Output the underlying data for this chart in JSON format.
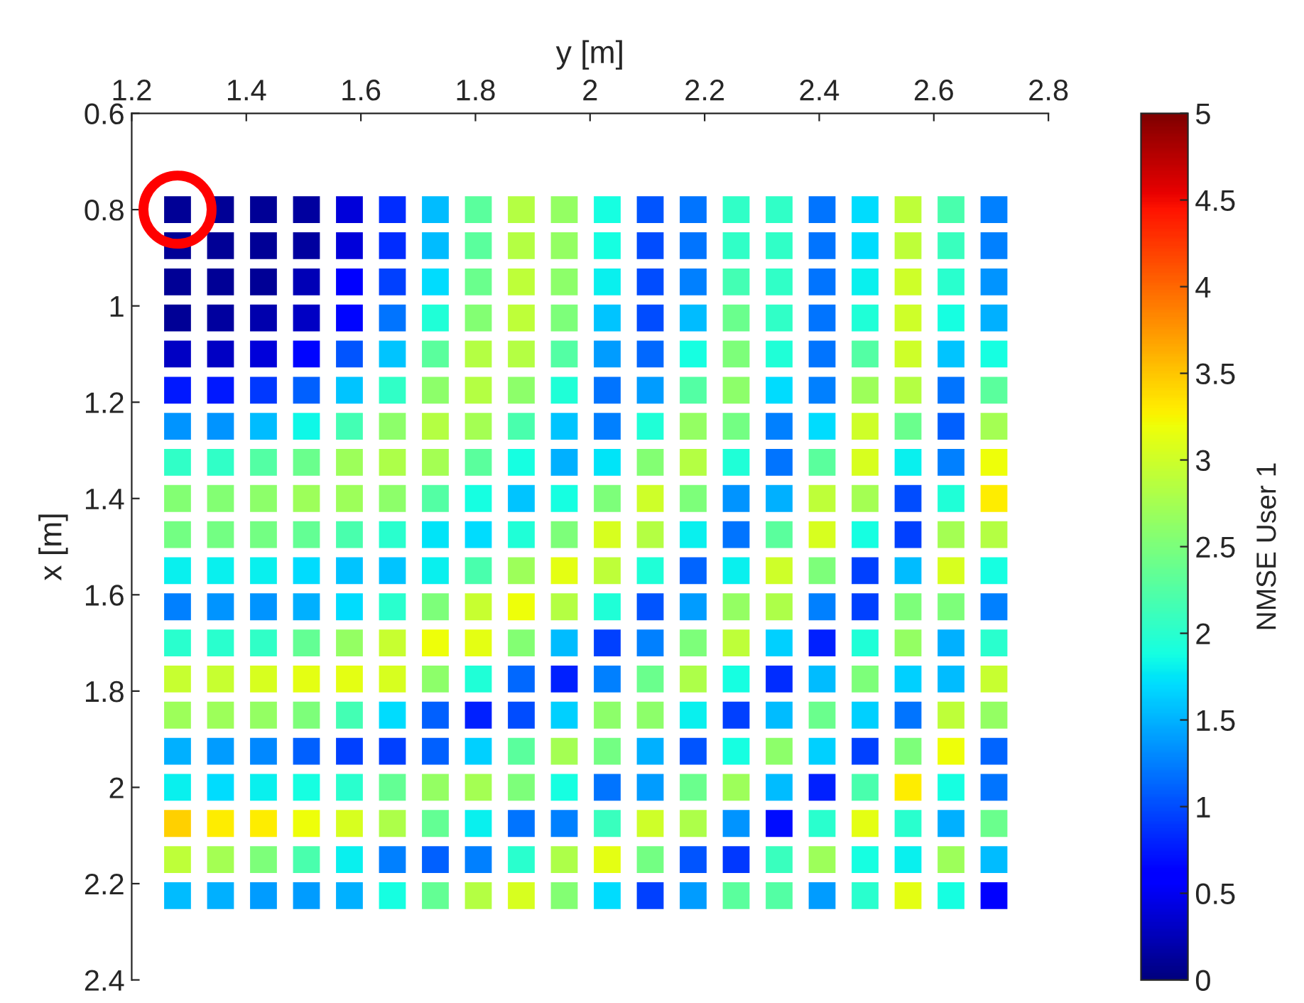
{
  "chart_data": {
    "type": "scatter",
    "xlabel": "y [m]",
    "ylabel": "x [m]",
    "clabel": "NMSE User 1",
    "marker": "square",
    "x": [
      1.28,
      1.355,
      1.43,
      1.505,
      1.58,
      1.655,
      1.73,
      1.805,
      1.88,
      1.955,
      2.03,
      2.105,
      2.18,
      2.255,
      2.33,
      2.405,
      2.48,
      2.555,
      2.63,
      2.705,
      1.28,
      1.355,
      1.43,
      1.505,
      1.58,
      1.655,
      1.73,
      1.805,
      1.88,
      1.955,
      2.03,
      2.105,
      2.18,
      2.255,
      2.33,
      2.405,
      2.48,
      2.555,
      2.63,
      2.705,
      1.28,
      1.355,
      1.43,
      1.505,
      1.58,
      1.655,
      1.73,
      1.805,
      1.88,
      1.955,
      2.03,
      2.105,
      2.18,
      2.255,
      2.33,
      2.405,
      2.48,
      2.555,
      2.63,
      2.705,
      1.28,
      1.355,
      1.43,
      1.505,
      1.58,
      1.655,
      1.73,
      1.805,
      1.88,
      1.955,
      2.03,
      2.105,
      2.18,
      2.255,
      2.33,
      2.405,
      2.48,
      2.555,
      2.63,
      2.705,
      1.28,
      1.355,
      1.43,
      1.505,
      1.58,
      1.655,
      1.73,
      1.805,
      1.88,
      1.955,
      2.03,
      2.105,
      2.18,
      2.255,
      2.33,
      2.405,
      2.48,
      2.555,
      2.63,
      2.705,
      1.28,
      1.355,
      1.43,
      1.505,
      1.58,
      1.655,
      1.73,
      1.805,
      1.88,
      1.955,
      2.03,
      2.105,
      2.18,
      2.255,
      2.33,
      2.405,
      2.48,
      2.555,
      2.63,
      2.705,
      1.28,
      1.355,
      1.43,
      1.505,
      1.58,
      1.655,
      1.73,
      1.805,
      1.88,
      1.955,
      2.03,
      2.105,
      2.18,
      2.255,
      2.33,
      2.405,
      2.48,
      2.555,
      2.63,
      2.705,
      1.28,
      1.355,
      1.43,
      1.505,
      1.58,
      1.655,
      1.73,
      1.805,
      1.88,
      1.955,
      2.03,
      2.105,
      2.18,
      2.255,
      2.33,
      2.405,
      2.48,
      2.555,
      2.63,
      2.705,
      1.28,
      1.355,
      1.43,
      1.505,
      1.58,
      1.655,
      1.73,
      1.805,
      1.88,
      1.955,
      2.03,
      2.105,
      2.18,
      2.255,
      2.33,
      2.405,
      2.48,
      2.555,
      2.63,
      2.705,
      1.28,
      1.355,
      1.43,
      1.505,
      1.58,
      1.655,
      1.73,
      1.805,
      1.88,
      1.955,
      2.03,
      2.105,
      2.18,
      2.255,
      2.33,
      2.405,
      2.48,
      2.555,
      2.63,
      2.705,
      1.28,
      1.355,
      1.43,
      1.505,
      1.58,
      1.655,
      1.73,
      1.805,
      1.88,
      1.955,
      2.03,
      2.105,
      2.18,
      2.255,
      2.33,
      2.405,
      2.48,
      2.555,
      2.63,
      2.705,
      1.28,
      1.355,
      1.43,
      1.505,
      1.58,
      1.655,
      1.73,
      1.805,
      1.88,
      1.955,
      2.03,
      2.105,
      2.18,
      2.255,
      2.33,
      2.405,
      2.48,
      2.555,
      2.63,
      2.705,
      1.28,
      1.355,
      1.43,
      1.505,
      1.58,
      1.655,
      1.73,
      1.805,
      1.88,
      1.955,
      2.03,
      2.105,
      2.18,
      2.255,
      2.33,
      2.405,
      2.48,
      2.555,
      2.63,
      2.705,
      1.28,
      1.355,
      1.43,
      1.505,
      1.58,
      1.655,
      1.73,
      1.805,
      1.88,
      1.955,
      2.03,
      2.105,
      2.18,
      2.255,
      2.33,
      2.405,
      2.48,
      2.555,
      2.63,
      2.705,
      1.28,
      1.355,
      1.43,
      1.505,
      1.58,
      1.655,
      1.73,
      1.805,
      1.88,
      1.955,
      2.03,
      2.105,
      2.18,
      2.255,
      2.33,
      2.405,
      2.48,
      2.555,
      2.63,
      2.705,
      1.28,
      1.355,
      1.43,
      1.505,
      1.58,
      1.655,
      1.73,
      1.805,
      1.88,
      1.955,
      2.03,
      2.105,
      2.18,
      2.255,
      2.33,
      2.405,
      2.48,
      2.555,
      2.63,
      2.705,
      1.28,
      1.355,
      1.43,
      1.505,
      1.58,
      1.655,
      1.73,
      1.805,
      1.88,
      1.955,
      2.03,
      2.105,
      2.18,
      2.255,
      2.33,
      2.405,
      2.48,
      2.555,
      2.63,
      2.705,
      1.28,
      1.355,
      1.43,
      1.505,
      1.58,
      1.655,
      1.73,
      1.805,
      1.88,
      1.955,
      2.03,
      2.105,
      2.18,
      2.255,
      2.33,
      2.405,
      2.48,
      2.555,
      2.63,
      2.705,
      1.28,
      1.355,
      1.43,
      1.505,
      1.58,
      1.655,
      1.73,
      1.805,
      1.88,
      1.955,
      2.03,
      2.105,
      2.18,
      2.255,
      2.33,
      2.405,
      2.48,
      2.555,
      2.63,
      2.705,
      1.28,
      1.355,
      1.43,
      1.505,
      1.58,
      1.655,
      1.73,
      1.805,
      1.88,
      1.955,
      2.03,
      2.105,
      2.18,
      2.255,
      2.33,
      2.405,
      2.48,
      2.555,
      2.63,
      2.705
    ],
    "values": [
      0.8,
      0.8,
      0.8,
      0.8,
      0.8,
      0.8,
      0.8,
      0.8,
      0.8,
      0.8,
      0.8,
      0.8,
      0.8,
      0.8,
      0.8,
      0.8,
      0.8,
      0.8,
      0.8,
      0.8,
      0.875,
      0.875,
      0.875,
      0.875,
      0.875,
      0.875,
      0.875,
      0.875,
      0.875,
      0.875,
      0.875,
      0.875,
      0.875,
      0.875,
      0.875,
      0.875,
      0.875,
      0.875,
      0.875,
      0.875,
      0.95,
      0.95,
      0.95,
      0.95,
      0.95,
      0.95,
      0.95,
      0.95,
      0.95,
      0.95,
      0.95,
      0.95,
      0.95,
      0.95,
      0.95,
      0.95,
      0.95,
      0.95,
      0.95,
      0.95,
      1.025,
      1.025,
      1.025,
      1.025,
      1.025,
      1.025,
      1.025,
      1.025,
      1.025,
      1.025,
      1.025,
      1.025,
      1.025,
      1.025,
      1.025,
      1.025,
      1.025,
      1.025,
      1.025,
      1.025,
      1.1,
      1.1,
      1.1,
      1.1,
      1.1,
      1.1,
      1.1,
      1.1,
      1.1,
      1.1,
      1.1,
      1.1,
      1.1,
      1.1,
      1.1,
      1.1,
      1.1,
      1.1,
      1.1,
      1.1,
      1.175,
      1.175,
      1.175,
      1.175,
      1.175,
      1.175,
      1.175,
      1.175,
      1.175,
      1.175,
      1.175,
      1.175,
      1.175,
      1.175,
      1.175,
      1.175,
      1.175,
      1.175,
      1.175,
      1.175,
      1.25,
      1.25,
      1.25,
      1.25,
      1.25,
      1.25,
      1.25,
      1.25,
      1.25,
      1.25,
      1.25,
      1.25,
      1.25,
      1.25,
      1.25,
      1.25,
      1.25,
      1.25,
      1.25,
      1.25,
      1.325,
      1.325,
      1.325,
      1.325,
      1.325,
      1.325,
      1.325,
      1.325,
      1.325,
      1.325,
      1.325,
      1.325,
      1.325,
      1.325,
      1.325,
      1.325,
      1.325,
      1.325,
      1.325,
      1.325,
      1.4,
      1.4,
      1.4,
      1.4,
      1.4,
      1.4,
      1.4,
      1.4,
      1.4,
      1.4,
      1.4,
      1.4,
      1.4,
      1.4,
      1.4,
      1.4,
      1.4,
      1.4,
      1.4,
      1.4,
      1.475,
      1.475,
      1.475,
      1.475,
      1.475,
      1.475,
      1.475,
      1.475,
      1.475,
      1.475,
      1.475,
      1.475,
      1.475,
      1.475,
      1.475,
      1.475,
      1.475,
      1.475,
      1.475,
      1.475,
      1.55,
      1.55,
      1.55,
      1.55,
      1.55,
      1.55,
      1.55,
      1.55,
      1.55,
      1.55,
      1.55,
      1.55,
      1.55,
      1.55,
      1.55,
      1.55,
      1.55,
      1.55,
      1.55,
      1.55,
      1.625,
      1.625,
      1.625,
      1.625,
      1.625,
      1.625,
      1.625,
      1.625,
      1.625,
      1.625,
      1.625,
      1.625,
      1.625,
      1.625,
      1.625,
      1.625,
      1.625,
      1.625,
      1.625,
      1.625,
      1.7,
      1.7,
      1.7,
      1.7,
      1.7,
      1.7,
      1.7,
      1.7,
      1.7,
      1.7,
      1.7,
      1.7,
      1.7,
      1.7,
      1.7,
      1.7,
      1.7,
      1.7,
      1.7,
      1.7,
      1.775,
      1.775,
      1.775,
      1.775,
      1.775,
      1.775,
      1.775,
      1.775,
      1.775,
      1.775,
      1.775,
      1.775,
      1.775,
      1.775,
      1.775,
      1.775,
      1.775,
      1.775,
      1.775,
      1.775,
      1.85,
      1.85,
      1.85,
      1.85,
      1.85,
      1.85,
      1.85,
      1.85,
      1.85,
      1.85,
      1.85,
      1.85,
      1.85,
      1.85,
      1.85,
      1.85,
      1.85,
      1.85,
      1.85,
      1.85,
      1.925,
      1.925,
      1.925,
      1.925,
      1.925,
      1.925,
      1.925,
      1.925,
      1.925,
      1.925,
      1.925,
      1.925,
      1.925,
      1.925,
      1.925,
      1.925,
      1.925,
      1.925,
      1.925,
      1.925,
      2.0,
      2.0,
      2.0,
      2.0,
      2.0,
      2.0,
      2.0,
      2.0,
      2.0,
      2.0,
      2.0,
      2.0,
      2.0,
      2.0,
      2.0,
      2.0,
      2.0,
      2.0,
      2.0,
      2.0,
      2.075,
      2.075,
      2.075,
      2.075,
      2.075,
      2.075,
      2.075,
      2.075,
      2.075,
      2.075,
      2.075,
      2.075,
      2.075,
      2.075,
      2.075,
      2.075,
      2.075,
      2.075,
      2.075,
      2.075,
      2.15,
      2.15,
      2.15,
      2.15,
      2.15,
      2.15,
      2.15,
      2.15,
      2.15,
      2.15,
      2.15,
      2.15,
      2.15,
      2.15,
      2.15,
      2.15,
      2.15,
      2.15,
      2.15,
      2.15,
      2.225,
      2.225,
      2.225,
      2.225,
      2.225,
      2.225,
      2.225,
      2.225,
      2.225,
      2.225,
      2.225,
      2.225,
      2.225,
      2.225,
      2.225,
      2.225,
      2.225,
      2.225,
      2.225,
      2.225
    ],
    "cvalues": [
      0.1,
      0.1,
      0.1,
      0.15,
      0.4,
      0.85,
      1.55,
      2.3,
      2.85,
      2.65,
      1.875,
      1.05,
      1.2,
      2.05,
      2.05,
      1.2,
      1.7,
      2.9,
      2.2,
      1.25,
      0.1,
      0.1,
      0.1,
      0.15,
      0.4,
      0.85,
      1.55,
      2.3,
      2.85,
      2.65,
      1.875,
      1.0,
      1.2,
      2.05,
      2.05,
      1.2,
      1.7,
      2.9,
      2.1,
      1.25,
      0.1,
      0.1,
      0.1,
      0.25,
      0.6,
      0.95,
      1.7,
      2.4,
      2.9,
      2.6,
      1.8,
      1.0,
      1.25,
      2.15,
      2.05,
      1.2,
      1.8,
      3.0,
      2.0,
      1.35,
      0.1,
      0.15,
      0.2,
      0.3,
      0.65,
      1.2,
      1.95,
      2.55,
      2.9,
      2.5,
      1.6,
      1.0,
      1.55,
      2.4,
      2.05,
      1.2,
      1.95,
      3.0,
      1.875,
      1.5,
      0.3,
      0.3,
      0.4,
      0.65,
      1.05,
      1.6,
      2.3,
      2.85,
      2.85,
      2.25,
      1.4,
      1.15,
      1.875,
      2.5,
      1.95,
      1.2,
      2.25,
      3.0,
      1.6,
      1.875,
      0.75,
      0.75,
      0.9,
      1.1,
      1.6,
      2.05,
      2.6,
      2.85,
      2.6,
      1.95,
      1.2,
      1.4,
      2.25,
      2.6,
      1.7,
      1.25,
      2.7,
      2.85,
      1.2,
      2.3,
      1.35,
      1.35,
      1.55,
      1.85,
      2.15,
      2.6,
      2.85,
      2.75,
      2.2,
      1.6,
      1.25,
      1.95,
      2.65,
      2.45,
      1.25,
      1.7,
      3.0,
      2.4,
      1.1,
      2.75,
      2.05,
      2.05,
      2.25,
      2.4,
      2.7,
      2.8,
      2.75,
      2.3,
      1.875,
      1.5,
      1.75,
      2.55,
      2.85,
      1.95,
      1.2,
      2.3,
      3.05,
      1.8,
      1.25,
      3.2,
      2.55,
      2.55,
      2.6,
      2.7,
      2.7,
      2.6,
      2.25,
      1.875,
      1.6,
      1.875,
      2.5,
      3.0,
      2.5,
      1.35,
      1.5,
      2.9,
      2.75,
      1.0,
      1.95,
      3.3,
      2.45,
      2.45,
      2.45,
      2.35,
      2.2,
      2.0,
      1.75,
      1.7,
      1.95,
      2.5,
      3.05,
      2.85,
      1.8,
      1.2,
      2.3,
      3.05,
      1.875,
      0.95,
      2.75,
      2.85,
      1.8,
      1.8,
      1.8,
      1.7,
      1.6,
      1.6,
      1.8,
      2.2,
      2.7,
      3.125,
      2.9,
      1.95,
      1.125,
      1.8,
      3.0,
      2.5,
      0.95,
      1.55,
      3.05,
      1.875,
      1.25,
      1.35,
      1.35,
      1.5,
      1.7,
      2.0,
      2.5,
      2.95,
      3.2,
      2.85,
      1.95,
      1.05,
      1.4,
      2.65,
      2.8,
      1.25,
      0.95,
      2.5,
      2.5,
      1.25,
      2.0,
      2.0,
      2.05,
      2.35,
      2.65,
      2.95,
      3.2,
      3.125,
      2.55,
      1.55,
      0.95,
      1.25,
      2.5,
      2.9,
      1.65,
      0.8,
      1.95,
      2.65,
      1.5,
      2.0,
      2.95,
      2.95,
      3.05,
      3.125,
      3.125,
      3.05,
      2.6,
      1.95,
      1.15,
      0.8,
      1.25,
      2.4,
      2.8,
      1.875,
      0.85,
      1.55,
      2.5,
      1.65,
      1.55,
      2.95,
      2.7,
      2.7,
      2.65,
      2.5,
      2.15,
      1.7,
      1.1,
      0.8,
      1.0,
      1.65,
      2.6,
      2.6,
      1.8,
      0.95,
      1.55,
      2.4,
      1.65,
      1.2,
      2.9,
      2.65,
      1.5,
      1.4,
      1.3,
      1.1,
      0.95,
      0.95,
      1.1,
      1.65,
      2.3,
      2.75,
      2.45,
      1.5,
      1.05,
      1.875,
      2.6,
      1.65,
      0.95,
      2.5,
      3.2,
      1.125,
      1.8,
      1.7,
      1.8,
      1.875,
      2.0,
      2.35,
      2.65,
      2.75,
      2.5,
      1.875,
      1.2,
      1.4,
      2.4,
      2.7,
      1.55,
      0.8,
      2.2,
      3.3,
      1.875,
      1.2,
      3.45,
      3.3,
      3.3,
      3.2,
      3.05,
      2.8,
      2.35,
      1.8,
      1.2,
      1.25,
      2.1,
      3.0,
      2.8,
      1.35,
      0.7,
      2.0,
      3.125,
      2.0,
      1.5,
      2.4,
      2.9,
      2.75,
      2.5,
      2.2,
      1.8,
      1.25,
      1.1,
      1.25,
      2.0,
      2.8,
      3.125,
      2.45,
      1.05,
      0.9,
      2.1,
      2.7,
      1.875,
      1.8,
      2.7,
      1.55,
      1.55,
      1.5,
      1.4,
      1.4,
      1.5,
      1.875,
      2.35,
      2.85,
      3.05,
      2.55,
      1.7,
      0.95,
      1.4,
      2.3,
      2.25,
      1.4,
      2.0,
      3.125,
      1.875,
      0.6
    ],
    "xlim": [
      1.2,
      2.8
    ],
    "xticks": [
      1.2,
      1.4,
      1.6,
      1.8,
      2,
      2.2,
      2.4,
      2.6,
      2.8
    ],
    "ylim": [
      2.4,
      0.6
    ],
    "yticks": [
      0.6,
      0.8,
      1,
      1.2,
      1.4,
      1.6,
      1.8,
      2,
      2.2,
      2.4
    ],
    "clim": [
      0,
      5
    ],
    "cticks": [
      0,
      0.5,
      1,
      1.5,
      2,
      2.5,
      3,
      3.5,
      4,
      4.5,
      5
    ]
  }
}
